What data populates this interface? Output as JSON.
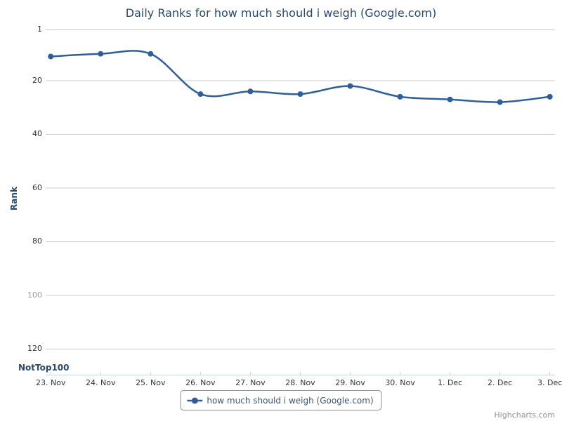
{
  "window": {
    "background": "#ffffff"
  },
  "colors": {
    "series": "#2e5f9b",
    "title_text": "#274b6d",
    "tick_label": "#333333",
    "muted_tick_label": "#999999",
    "gridline": "#cccccc",
    "axis_line": "#c8d4e3",
    "legend_border": "#8f8f8f",
    "legend_text": "#3e576f",
    "credits_text": "#909090"
  },
  "chart_data": {
    "type": "line",
    "title": "Daily Ranks for how much should i weigh (Google.com)",
    "xlabel": "",
    "ylabel": "Rank",
    "x_categories": [
      "23. Nov",
      "24. Nov",
      "25. Nov",
      "26. Nov",
      "27. Nov",
      "28. Nov",
      "29. Nov",
      "30. Nov",
      "1. Dec",
      "2. Dec",
      "3. Dec"
    ],
    "series": [
      {
        "name": "how much should i weigh (Google.com)",
        "values": [
          11,
          10,
          10,
          25,
          24,
          25,
          22,
          26,
          27,
          28,
          26
        ]
      }
    ],
    "y_axis": {
      "title": "Rank",
      "inverted": true,
      "ylim": [
        1,
        130
      ],
      "ticks": [
        {
          "label": "1",
          "value": 1,
          "muted": false
        },
        {
          "label": "20",
          "value": 20,
          "muted": false
        },
        {
          "label": "40",
          "value": 40,
          "muted": false
        },
        {
          "label": "60",
          "value": 60,
          "muted": false
        },
        {
          "label": "80",
          "value": 80,
          "muted": false
        },
        {
          "label": "100",
          "value": 100,
          "muted": true
        },
        {
          "label": "120",
          "value": 120,
          "muted": false
        }
      ],
      "bottom_label": "NotTop100"
    },
    "grid": true,
    "legend": {
      "position": "bottom-center",
      "items": [
        {
          "label": "how much should i weigh (Google.com)"
        }
      ]
    },
    "credits": "Highcharts.com"
  }
}
